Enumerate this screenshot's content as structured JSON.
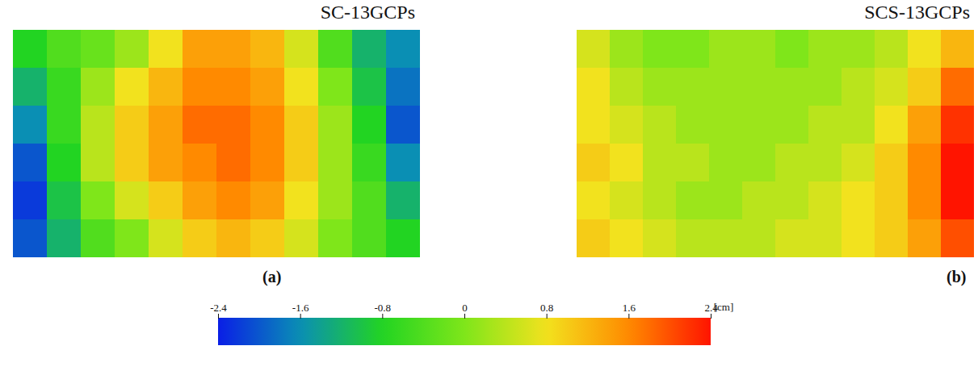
{
  "chart_data": [
    {
      "type": "heatmap",
      "title": "SC-13GCPs",
      "panel_label": "(a)",
      "cells": [
        [
          -0.8,
          -0.4,
          -0.2,
          0.2,
          0.8,
          1.4,
          1.4,
          1.2,
          0.6,
          -0.4,
          -1.2,
          -1.6
        ],
        [
          -1.2,
          -0.6,
          0.2,
          0.8,
          1.2,
          1.6,
          1.6,
          1.4,
          0.8,
          0,
          -1.0,
          -1.8
        ],
        [
          -1.6,
          -0.6,
          0.4,
          1.0,
          1.4,
          1.8,
          1.8,
          1.6,
          1.0,
          0.2,
          -0.8,
          -2.0
        ],
        [
          -2.0,
          -0.8,
          0.4,
          1.0,
          1.4,
          1.6,
          1.8,
          1.6,
          1.0,
          0.2,
          -0.6,
          -1.6
        ],
        [
          -2.2,
          -1.0,
          0,
          0.6,
          1.0,
          1.4,
          1.6,
          1.4,
          0.8,
          0.2,
          -0.4,
          -1.2
        ],
        [
          -2.0,
          -1.2,
          -0.4,
          0,
          0.6,
          1.0,
          1.2,
          1.0,
          0.6,
          0,
          -0.4,
          -0.8
        ]
      ]
    },
    {
      "type": "heatmap",
      "title": "SCS-13GCPs",
      "panel_label": "(b)",
      "cells": [
        [
          0.6,
          0.2,
          0,
          0,
          0.2,
          0.2,
          0,
          0.2,
          0.2,
          0.4,
          0.8,
          1.2
        ],
        [
          0.8,
          0.4,
          0.2,
          0.2,
          0.2,
          0.2,
          0.2,
          0.2,
          0.4,
          0.6,
          1.0,
          1.8
        ],
        [
          0.8,
          0.6,
          0.4,
          0.2,
          0.2,
          0.2,
          0.2,
          0.4,
          0.4,
          0.8,
          1.4,
          2.2
        ],
        [
          1.0,
          0.8,
          0.4,
          0.4,
          0.2,
          0.2,
          0.4,
          0.4,
          0.6,
          1.0,
          1.6,
          2.4
        ],
        [
          0.8,
          0.6,
          0.4,
          0.2,
          0.2,
          0.4,
          0.4,
          0.6,
          0.8,
          1.0,
          1.6,
          2.4
        ],
        [
          1.0,
          0.8,
          0.6,
          0.4,
          0.4,
          0.4,
          0.6,
          0.6,
          0.8,
          1.0,
          1.4,
          2.0
        ]
      ]
    }
  ],
  "colorbar": {
    "range": [
      -2.4,
      2.4
    ],
    "ticks": [
      -2.4,
      -1.6,
      -0.8,
      0,
      0.8,
      1.6,
      2.4
    ],
    "label": "[cm]"
  }
}
